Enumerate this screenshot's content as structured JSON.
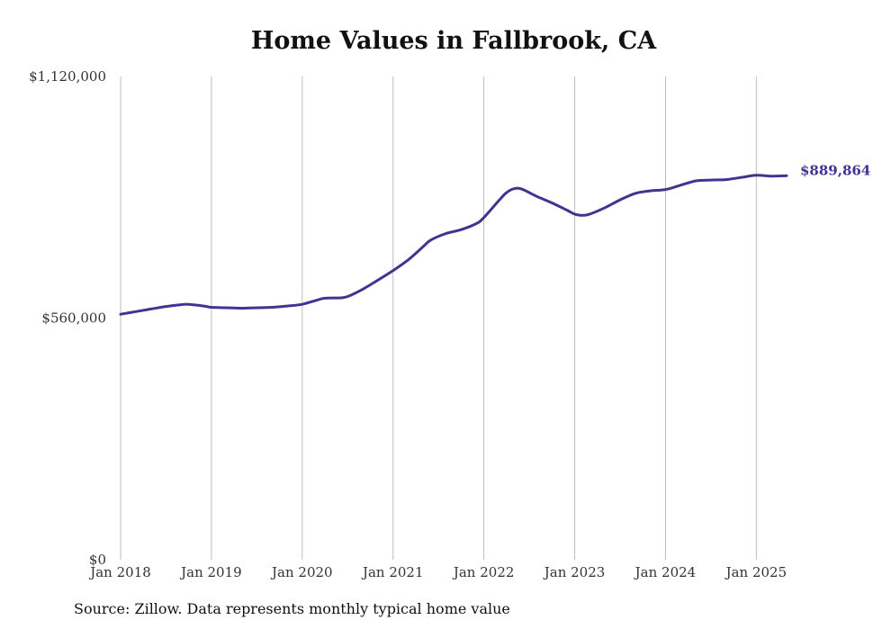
{
  "source_note": "Source: Zillow. Data represents monthly typical home value",
  "colors": {
    "line": "#3f3590",
    "grid": "#bdbdbd",
    "text": "#333333"
  },
  "chart_data": {
    "type": "line",
    "title": "Home Values in Fallbrook, CA",
    "xlabel": "",
    "ylabel": "",
    "ylim": [
      0,
      1120000
    ],
    "xlim": [
      "2018-01",
      "2025-05"
    ],
    "y_ticks": [
      {
        "value": 0,
        "label": "$0"
      },
      {
        "value": 560000,
        "label": "$560,000"
      },
      {
        "value": 1120000,
        "label": "$1,120,000"
      }
    ],
    "x_ticks": [
      {
        "date": "2018-01",
        "label": "Jan 2018"
      },
      {
        "date": "2019-01",
        "label": "Jan 2019"
      },
      {
        "date": "2020-01",
        "label": "Jan 2020"
      },
      {
        "date": "2021-01",
        "label": "Jan 2021"
      },
      {
        "date": "2022-01",
        "label": "Jan 2022"
      },
      {
        "date": "2023-01",
        "label": "Jan 2023"
      },
      {
        "date": "2024-01",
        "label": "Jan 2024"
      },
      {
        "date": "2025-01",
        "label": "Jan 2025"
      }
    ],
    "grid": {
      "vertical": true,
      "horizontal": false
    },
    "series": [
      {
        "end_label": "$889,864",
        "points": [
          [
            "2018-01",
            569000
          ],
          [
            "2018-03",
            575000
          ],
          [
            "2018-05",
            581000
          ],
          [
            "2018-07",
            587000
          ],
          [
            "2018-09",
            591000
          ],
          [
            "2018-10",
            592000
          ],
          [
            "2018-12",
            588000
          ],
          [
            "2019-01",
            585000
          ],
          [
            "2019-03",
            584000
          ],
          [
            "2019-05",
            583000
          ],
          [
            "2019-07",
            584000
          ],
          [
            "2019-09",
            585000
          ],
          [
            "2019-11",
            588000
          ],
          [
            "2020-01",
            592000
          ],
          [
            "2020-03",
            602000
          ],
          [
            "2020-04",
            606000
          ],
          [
            "2020-06",
            607000
          ],
          [
            "2020-07",
            610000
          ],
          [
            "2020-09",
            627000
          ],
          [
            "2020-11",
            648000
          ],
          [
            "2021-01",
            670000
          ],
          [
            "2021-03",
            695000
          ],
          [
            "2021-05",
            726000
          ],
          [
            "2021-06",
            741000
          ],
          [
            "2021-08",
            756000
          ],
          [
            "2021-10",
            765000
          ],
          [
            "2021-12",
            779000
          ],
          [
            "2022-01",
            793000
          ],
          [
            "2022-03",
            833000
          ],
          [
            "2022-04",
            851000
          ],
          [
            "2022-05",
            860000
          ],
          [
            "2022-06",
            859000
          ],
          [
            "2022-08",
            842000
          ],
          [
            "2022-10",
            827000
          ],
          [
            "2022-12",
            810000
          ],
          [
            "2023-01",
            801000
          ],
          [
            "2023-02",
            798000
          ],
          [
            "2023-03",
            801000
          ],
          [
            "2023-05",
            816000
          ],
          [
            "2023-07",
            834000
          ],
          [
            "2023-09",
            849000
          ],
          [
            "2023-11",
            855000
          ],
          [
            "2024-01",
            858000
          ],
          [
            "2024-03",
            868000
          ],
          [
            "2024-05",
            878000
          ],
          [
            "2024-07",
            880000
          ],
          [
            "2024-09",
            881000
          ],
          [
            "2024-11",
            886000
          ],
          [
            "2025-01",
            891000
          ],
          [
            "2025-03",
            889000
          ],
          [
            "2025-05",
            889864
          ]
        ]
      }
    ]
  }
}
